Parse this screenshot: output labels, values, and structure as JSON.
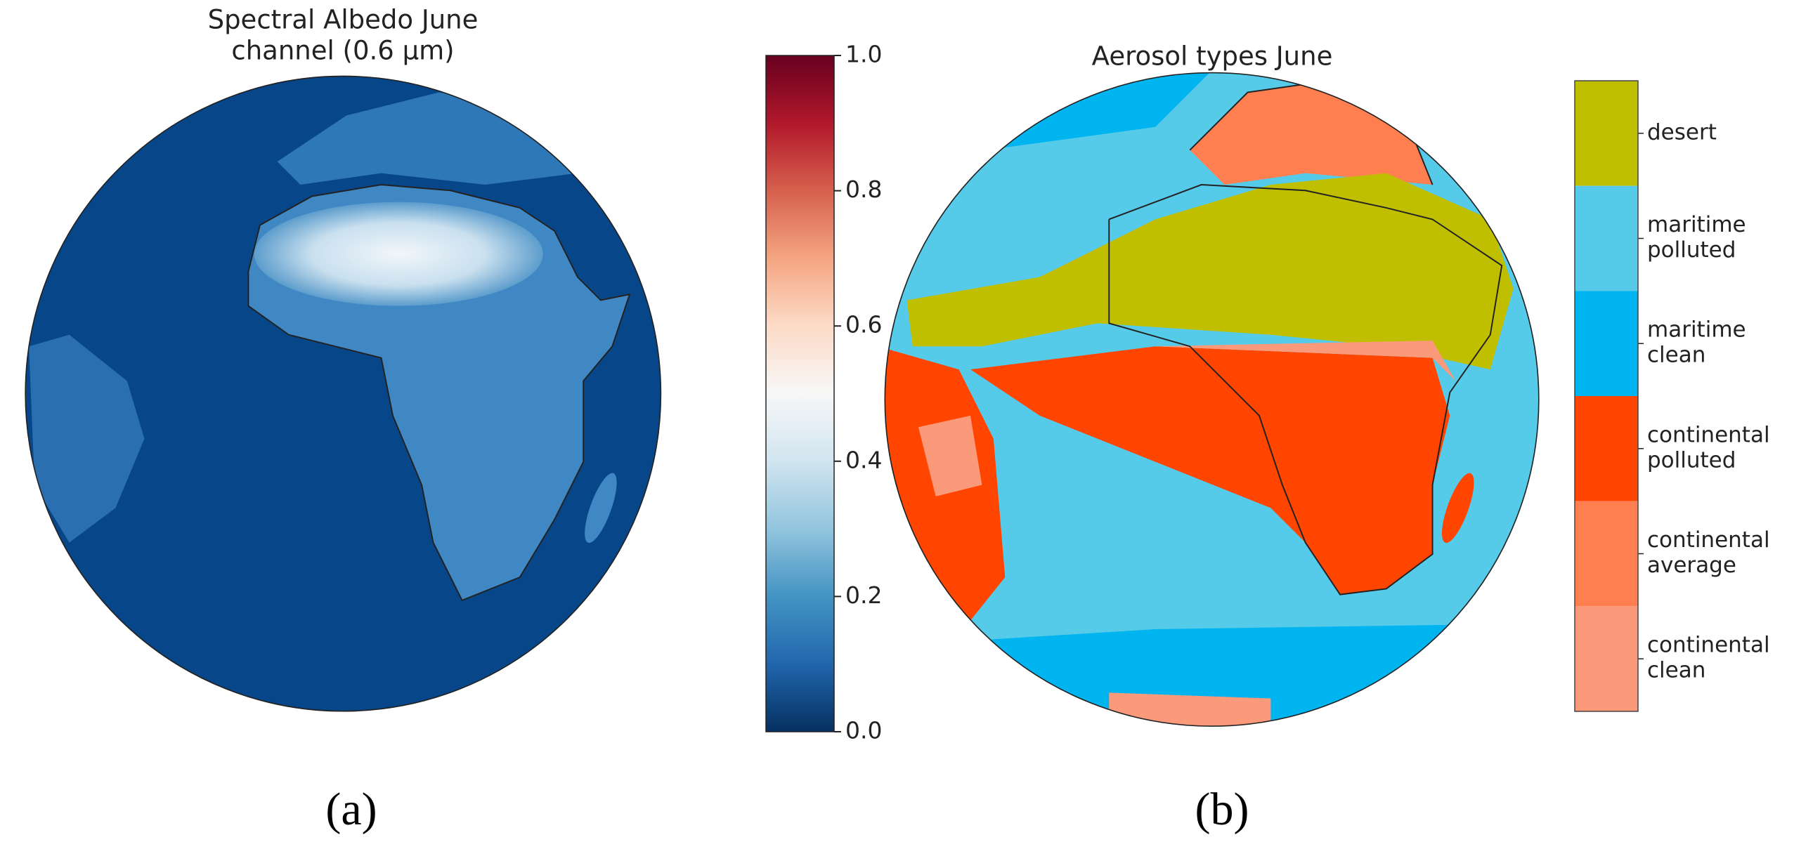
{
  "panels": [
    {
      "title_lines": [
        "Spectral Albedo June",
        "channel (0.6 μm)"
      ],
      "colorbar": {
        "ylim": [
          0,
          1
        ],
        "yticks": [
          {
            "value": 0,
            "label": "0.0"
          },
          0.2,
          0.4,
          0.6,
          0.8,
          {
            "value": 1,
            "label": "1.0"
          }
        ]
      },
      "label": "(a)"
    },
    {
      "title": "Aerosol types June",
      "legend": [
        {
          "lines": [
            "desert"
          ],
          "color": "#bfbf00"
        },
        {
          "lines": [
            "maritime",
            "polluted"
          ],
          "color": "#56cbe9"
        },
        {
          "lines": [
            "maritime",
            "clean"
          ],
          "color": "#00b4f0"
        },
        {
          "lines": [
            "continental",
            "polluted"
          ],
          "color": "#ff4500"
        },
        {
          "lines": [
            "continental",
            "average"
          ],
          "color": "#ff7f50"
        },
        {
          "lines": [
            "continental",
            "clean"
          ],
          "color": "#fa9a7a"
        }
      ],
      "label": "(b)"
    }
  ]
}
